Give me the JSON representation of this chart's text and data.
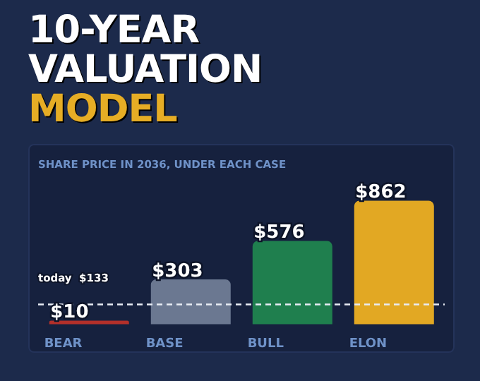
{
  "chart_data": {
    "type": "bar",
    "title": "10-YEAR VALUATION MODEL",
    "subtitle": "SHARE PRICE IN 2036, UNDER EACH CASE",
    "categories": [
      "BEAR",
      "BASE",
      "BULL",
      "ELON"
    ],
    "values": [
      10,
      303,
      576,
      862
    ],
    "colors": [
      "#b3302a",
      "#6b7891",
      "#1f7f4e",
      "#e2a823"
    ],
    "value_labels": [
      "$10",
      "$303",
      "$576",
      "$862"
    ],
    "ref_lines": [
      {
        "axis": "y",
        "value": 133,
        "label": "today  $133",
        "line_style": "dashed",
        "color": "#e8ecf4"
      }
    ],
    "grid": false,
    "legend": false
  }
}
